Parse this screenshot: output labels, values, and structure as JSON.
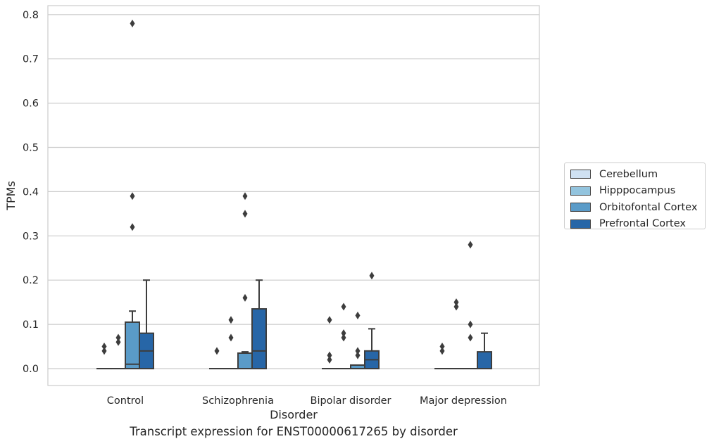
{
  "chart_data": {
    "type": "box",
    "title": "",
    "caption": "Transcript expression for ENST00000617265 by disorder",
    "xlabel": "Disorder",
    "ylabel": "TPMs",
    "ylim": [
      -0.04,
      0.82
    ],
    "yticks": [
      0.0,
      0.1,
      0.2,
      0.3,
      0.4,
      0.5,
      0.6,
      0.7,
      0.8
    ],
    "ytick_labels": [
      "0.0",
      "0.1",
      "0.2",
      "0.3",
      "0.4",
      "0.5",
      "0.6",
      "0.7",
      "0.8"
    ],
    "grid": "horizontal",
    "legend_position": "right",
    "categories": [
      "Control",
      "Schizophrenia",
      "Bipolar disorder",
      "Major depression"
    ],
    "series": [
      {
        "name": "Cerebellum",
        "color": "#cfe1f2",
        "boxes": [
          {
            "q1": 0,
            "median": 0,
            "q3": 0,
            "whisker_low": 0,
            "whisker_high": 0,
            "outliers": [
              0.05,
              0.04
            ]
          },
          {
            "q1": 0,
            "median": 0,
            "q3": 0,
            "whisker_low": 0,
            "whisker_high": 0,
            "outliers": [
              0.04
            ]
          },
          {
            "q1": 0,
            "median": 0,
            "q3": 0,
            "whisker_low": 0,
            "whisker_high": 0,
            "outliers": [
              0.11,
              0.03,
              0.02
            ]
          },
          {
            "q1": 0,
            "median": 0,
            "q3": 0,
            "whisker_low": 0,
            "whisker_high": 0,
            "outliers": [
              0.05,
              0.04
            ]
          }
        ]
      },
      {
        "name": "Hipppocampus",
        "color": "#93c4de",
        "boxes": [
          {
            "q1": 0,
            "median": 0,
            "q3": 0,
            "whisker_low": 0,
            "whisker_high": 0,
            "outliers": [
              0.07,
              0.06
            ]
          },
          {
            "q1": 0,
            "median": 0,
            "q3": 0,
            "whisker_low": 0,
            "whisker_high": 0,
            "outliers": [
              0.11,
              0.07
            ]
          },
          {
            "q1": 0,
            "median": 0,
            "q3": 0,
            "whisker_low": 0,
            "whisker_high": 0,
            "outliers": [
              0.14,
              0.08,
              0.07
            ]
          },
          {
            "q1": 0,
            "median": 0,
            "q3": 0,
            "whisker_low": 0,
            "whisker_high": 0,
            "outliers": [
              0.15,
              0.14
            ]
          }
        ]
      },
      {
        "name": "Orbitofontal Cortex",
        "color": "#5a9bc8",
        "boxes": [
          {
            "q1": 0,
            "median": 0.01,
            "q3": 0.105,
            "whisker_low": 0,
            "whisker_high": 0.13,
            "outliers": [
              0.78,
              0.39,
              0.32
            ]
          },
          {
            "q1": 0,
            "median": 0.035,
            "q3": 0.035,
            "whisker_low": 0,
            "whisker_high": 0.038,
            "outliers": [
              0.39,
              0.35,
              0.16
            ]
          },
          {
            "q1": 0,
            "median": 0.008,
            "q3": 0.008,
            "whisker_low": 0,
            "whisker_high": 0.008,
            "outliers": [
              0.12,
              0.04,
              0.03
            ]
          },
          {
            "q1": 0,
            "median": 0,
            "q3": 0,
            "whisker_low": 0,
            "whisker_high": 0,
            "outliers": [
              0.28,
              0.1,
              0.07
            ]
          }
        ]
      },
      {
        "name": "Prefrontal Cortex",
        "color": "#2766a7",
        "boxes": [
          {
            "q1": 0,
            "median": 0.04,
            "q3": 0.08,
            "whisker_low": 0,
            "whisker_high": 0.2,
            "outliers": []
          },
          {
            "q1": 0,
            "median": 0.04,
            "q3": 0.135,
            "whisker_low": 0,
            "whisker_high": 0.2,
            "outliers": []
          },
          {
            "q1": 0,
            "median": 0.02,
            "q3": 0.04,
            "whisker_low": 0,
            "whisker_high": 0.09,
            "outliers": [
              0.21
            ]
          },
          {
            "q1": 0,
            "median": 0,
            "q3": 0.038,
            "whisker_low": 0,
            "whisker_high": 0.08,
            "outliers": []
          }
        ]
      }
    ]
  }
}
